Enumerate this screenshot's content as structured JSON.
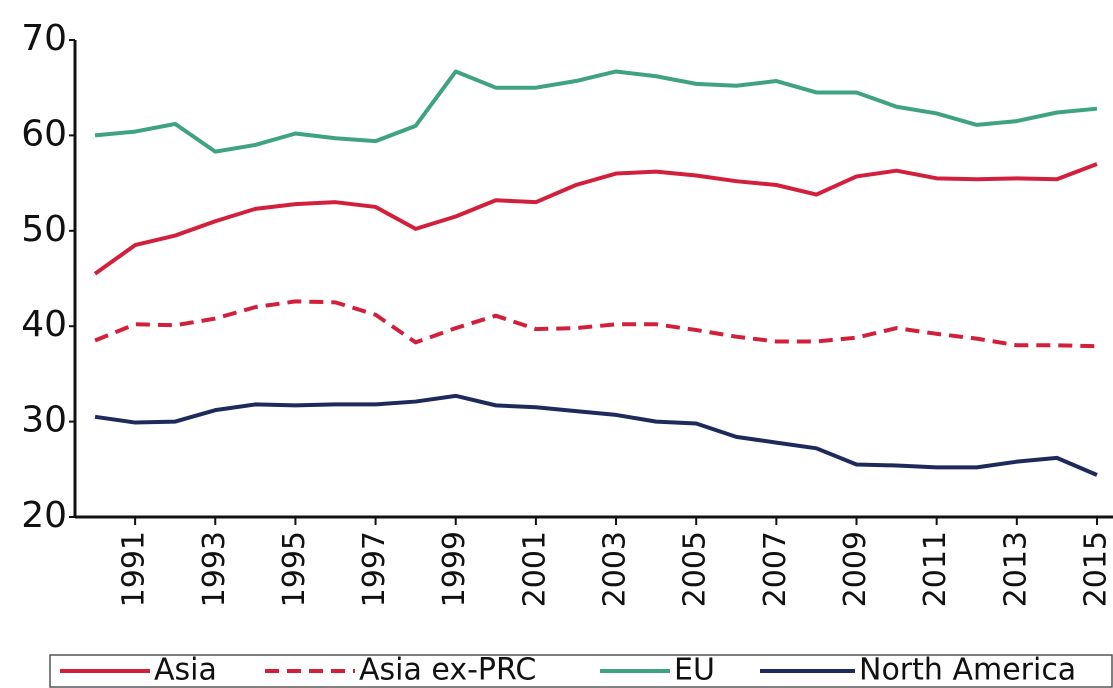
{
  "chart_data": {
    "type": "line",
    "x": [
      1990,
      1991,
      1992,
      1993,
      1994,
      1995,
      1996,
      1997,
      1998,
      1999,
      2000,
      2001,
      2002,
      2003,
      2004,
      2005,
      2006,
      2007,
      2008,
      2009,
      2010,
      2011,
      2012,
      2013,
      2014,
      2015
    ],
    "series": [
      {
        "name": "Asia",
        "color": "#d2203c",
        "dash": false,
        "values": [
          45.5,
          48.5,
          49.5,
          51,
          52.3,
          52.8,
          53,
          52.5,
          50.2,
          51.5,
          53.2,
          53,
          54.8,
          56,
          56.2,
          55.8,
          55.2,
          54.8,
          53.8,
          55.7,
          56.3,
          55.5,
          55.4,
          55.5,
          55.4,
          57
        ]
      },
      {
        "name": "Asia ex-PRC",
        "color": "#d2203c",
        "dash": true,
        "values": [
          38.5,
          40.2,
          40.1,
          40.8,
          42,
          42.6,
          42.5,
          41.2,
          38.3,
          39.8,
          41.1,
          39.7,
          39.8,
          40.2,
          40.2,
          39.6,
          38.9,
          38.4,
          38.4,
          38.8,
          39.8,
          39.2,
          38.7,
          38,
          38,
          37.9
        ]
      },
      {
        "name": "EU",
        "color": "#3fa37f",
        "dash": false,
        "values": [
          60,
          60.4,
          61.2,
          58.3,
          59,
          60.2,
          59.7,
          59.4,
          61,
          66.7,
          65,
          65,
          65.7,
          66.7,
          66.2,
          65.4,
          65.2,
          65.7,
          64.5,
          64.5,
          63,
          62.3,
          61.1,
          61.5,
          62.4,
          62.8
        ]
      },
      {
        "name": "North America",
        "color": "#1f2a5c",
        "dash": false,
        "values": [
          30.5,
          29.9,
          30,
          31.2,
          31.8,
          31.7,
          31.8,
          31.8,
          32.1,
          32.7,
          31.7,
          31.5,
          31.1,
          30.7,
          30,
          29.8,
          28.4,
          27.8,
          27.2,
          25.5,
          25.4,
          25.2,
          25.2,
          25.8,
          26.2,
          24.4
        ]
      }
    ],
    "xlim": [
      1989.5,
      2015.4
    ],
    "xticks": [
      1991,
      1993,
      1995,
      1997,
      1999,
      2001,
      2003,
      2005,
      2007,
      2009,
      2011,
      2013,
      2015
    ],
    "ylim": [
      20,
      70
    ],
    "yticks": [
      20,
      30,
      40,
      50,
      60,
      70
    ]
  }
}
